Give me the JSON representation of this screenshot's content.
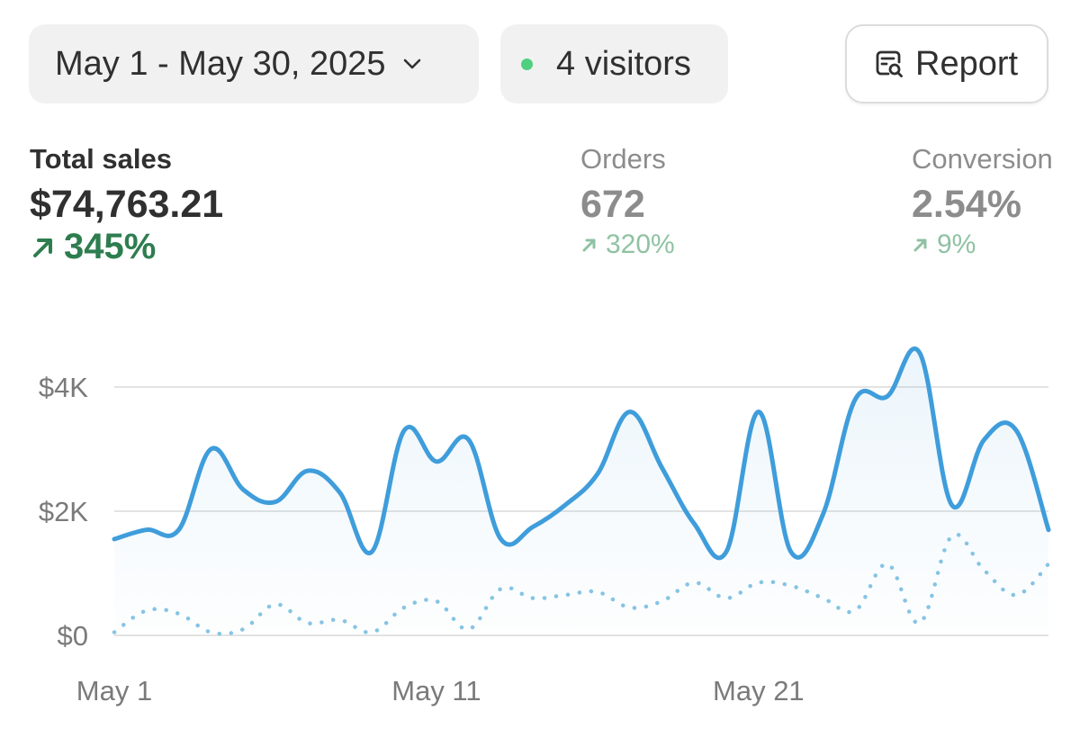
{
  "header": {
    "date_range": "May 1 - May 30, 2025",
    "visitors": "4 visitors",
    "report_label": "Report"
  },
  "metrics": {
    "sales": {
      "label": "Total sales",
      "value": "$74,763.21",
      "change": "345%"
    },
    "orders": {
      "label": "Orders",
      "value": "672",
      "change": "320%"
    },
    "conversion": {
      "label": "Conversion",
      "value": "2.54%",
      "change": "9%"
    }
  },
  "icons": {
    "date_chevron": "chevron-down-icon",
    "visitors_dot": "live-dot-icon",
    "report": "report-search-icon",
    "change": "arrow-up-right-icon"
  },
  "colors": {
    "current_line": "#3f9ddb",
    "previous_line": "#86c4e3",
    "positive_change": "#2e7d4f",
    "live_dot": "#4fd07e"
  },
  "chart_data": {
    "type": "line",
    "y_ticks": [
      "$0",
      "$2K",
      "$4K"
    ],
    "x_ticks": [
      "May 1",
      "May 11",
      "May 21"
    ],
    "ylim": [
      0,
      4800
    ],
    "x": [
      1,
      2,
      3,
      4,
      5,
      6,
      7,
      8,
      9,
      10,
      11,
      12,
      13,
      14,
      15,
      16,
      17,
      18,
      19,
      20,
      21,
      22,
      23,
      24,
      25,
      26,
      27,
      28,
      29,
      30
    ],
    "series": [
      {
        "style": "solid",
        "values": [
          1550,
          1700,
          1700,
          3000,
          2350,
          2150,
          2650,
          2300,
          1350,
          3300,
          2800,
          3150,
          1550,
          1750,
          2100,
          2600,
          3600,
          2700,
          1800,
          1350,
          3600,
          1350,
          1950,
          3800,
          3850,
          4550,
          2100,
          3150,
          3300,
          1700
        ]
      },
      {
        "style": "dotted",
        "values": [
          50,
          400,
          350,
          50,
          100,
          500,
          200,
          250,
          50,
          450,
          550,
          100,
          750,
          600,
          650,
          700,
          450,
          550,
          850,
          600,
          850,
          800,
          600,
          400,
          1150,
          200,
          1600,
          1050,
          650,
          1150
        ]
      }
    ],
    "grid": true,
    "legend": "none"
  }
}
